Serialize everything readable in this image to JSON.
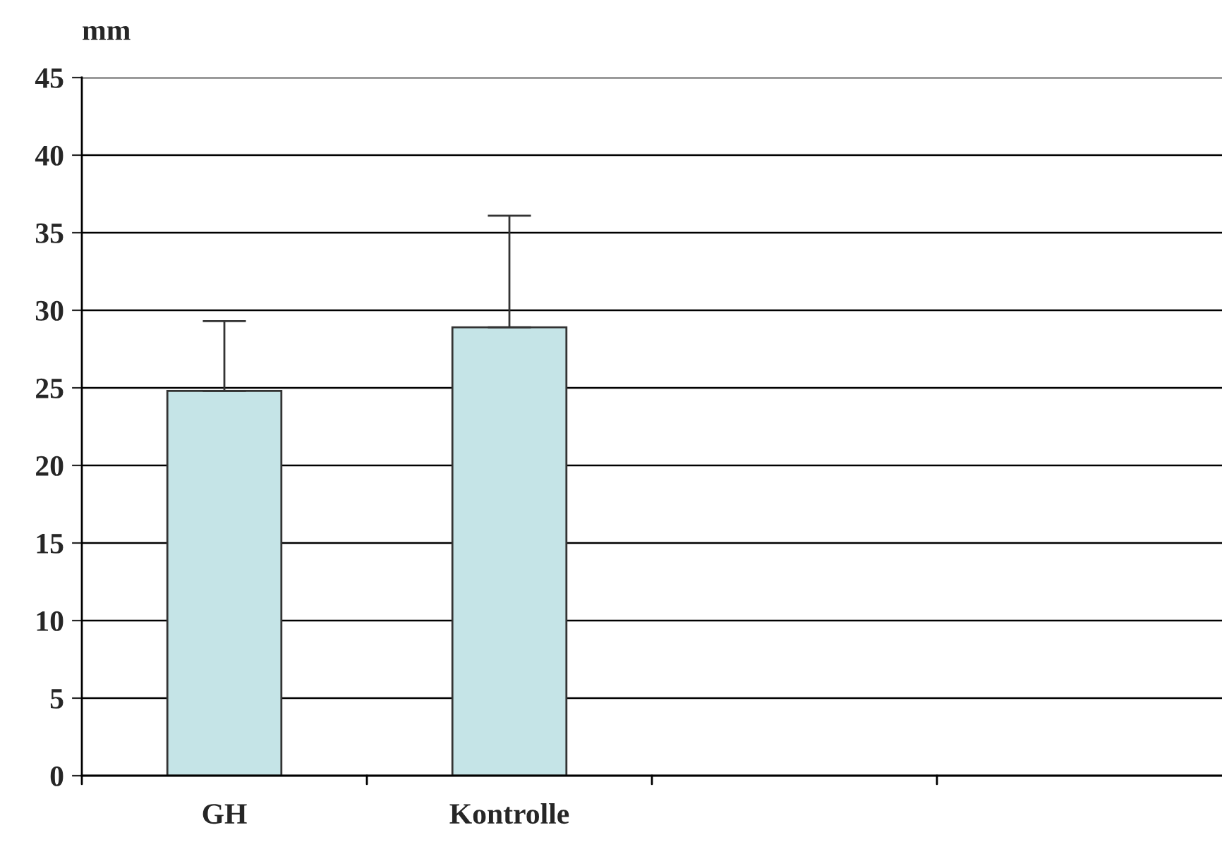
{
  "chart_data": {
    "type": "bar",
    "ylabel": "mm",
    "categories": [
      "GH",
      "Kontrolle",
      null,
      null
    ],
    "values": [
      24.8,
      28.9,
      null,
      null
    ],
    "errors": [
      [
        24.8,
        29.3
      ],
      [
        28.9,
        36.1
      ],
      null,
      null
    ],
    "color": "#c5e4e7",
    "ylim": [
      0,
      45
    ],
    "yticks": [
      0,
      5,
      10,
      15,
      20,
      25,
      30,
      35,
      40,
      45
    ],
    "grid": "y",
    "legend": false
  }
}
